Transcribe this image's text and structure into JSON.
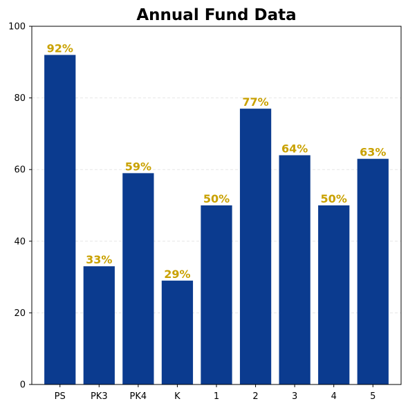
{
  "chart_data": {
    "type": "bar",
    "title": "Annual Fund Data",
    "xlabel": "",
    "ylabel": "",
    "categories": [
      "PS",
      "PK3",
      "PK4",
      "K",
      "1",
      "2",
      "3",
      "4",
      "5"
    ],
    "values": [
      92,
      33,
      59,
      29,
      50,
      77,
      64,
      50,
      63
    ],
    "data_labels": [
      "92%",
      "33%",
      "59%",
      "29%",
      "50%",
      "77%",
      "64%",
      "50%",
      "63%"
    ],
    "ylim": [
      0,
      100
    ],
    "yticks": [
      "0",
      "20",
      "40",
      "60",
      "80",
      "100"
    ],
    "grid": "horizontal-dashed",
    "legend": "none",
    "colors": {
      "bar": "#0b3b8f",
      "label": "#c9a100",
      "grid": "#e6e6e6",
      "axis": "#000000"
    }
  }
}
